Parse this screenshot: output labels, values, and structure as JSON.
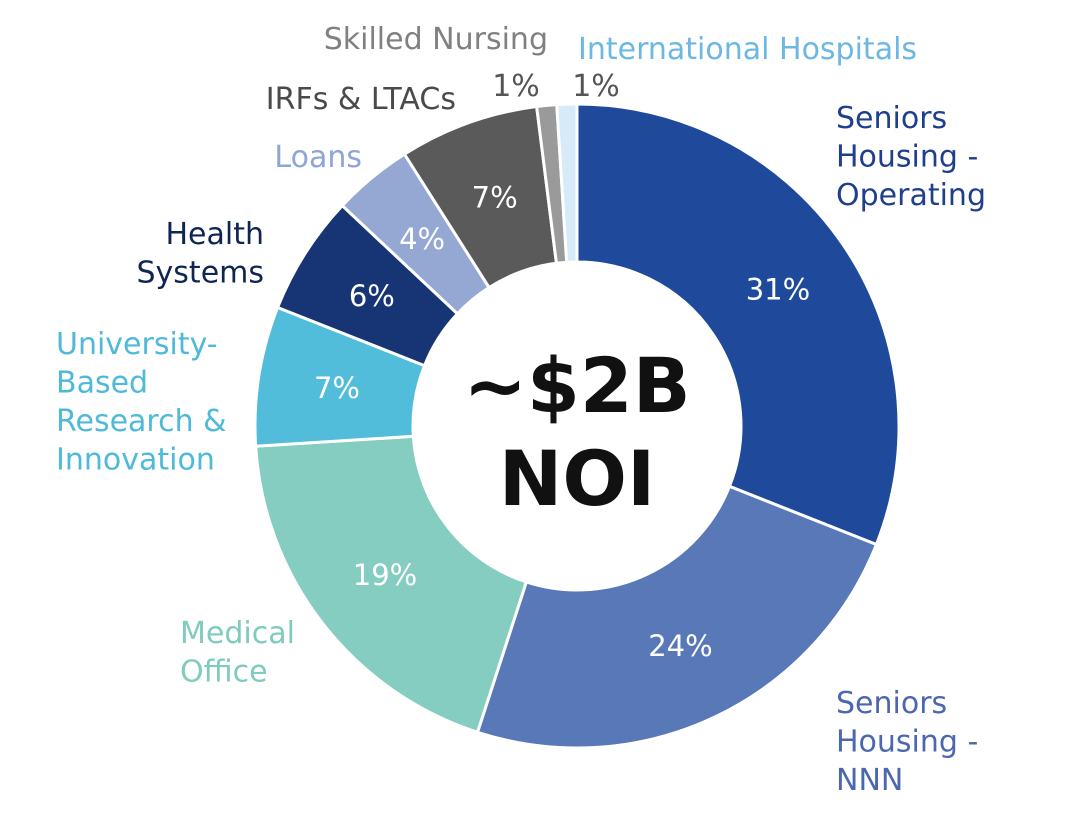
{
  "chart_data": {
    "type": "pie",
    "donut": true,
    "center_label": {
      "line1": "~$2B",
      "line2": "NOI"
    },
    "slices": [
      {
        "name": "Seniors Housing - Operating",
        "label_lines": [
          "Seniors",
          "Housing -",
          "Operating"
        ],
        "value": 31,
        "value_label": "31%",
        "color": "#1f4a9c",
        "label_color": "#1f3f8c"
      },
      {
        "name": "Seniors Housing - NNN",
        "label_lines": [
          "Seniors",
          "Housing -",
          "NNN"
        ],
        "value": 24,
        "value_label": "24%",
        "color": "#5878b8",
        "label_color": "#4a67b0"
      },
      {
        "name": "Medical Office",
        "label_lines": [
          "Medical",
          "Office"
        ],
        "value": 19,
        "value_label": "19%",
        "color": "#84cdc0",
        "label_color": "#7fcbbd"
      },
      {
        "name": "University-Based Research & Innovation",
        "label_lines": [
          "University-",
          "Based",
          "Research &",
          "Innovation"
        ],
        "value": 7,
        "value_label": "7%",
        "color": "#52bcdb",
        "label_color": "#4fb9da"
      },
      {
        "name": "Health Systems",
        "label_lines": [
          "Health",
          "Systems"
        ],
        "value": 6,
        "value_label": "6%",
        "color": "#173575",
        "label_color": "#0f2652"
      },
      {
        "name": "Loans",
        "label_lines": [
          "Loans"
        ],
        "value": 4,
        "value_label": "4%",
        "color": "#94a8d3",
        "label_color": "#8fa5d3"
      },
      {
        "name": "IRFs & LTACs",
        "label_lines": [
          "IRFs & LTACs"
        ],
        "value": 7,
        "value_label": "7%",
        "color": "#5a5a5a",
        "label_color": "#4a4a4a"
      },
      {
        "name": "Skilled Nursing",
        "label_lines": [
          "Skilled Nursing"
        ],
        "value": 1,
        "value_label": "1%",
        "color": "#9a9a9a",
        "label_color": "#808080"
      },
      {
        "name": "International Hospitals",
        "label_lines": [
          "International Hospitals"
        ],
        "value": 1,
        "value_label": "1%",
        "color": "#d6eaf8",
        "label_color": "#6cb8e2"
      }
    ]
  }
}
